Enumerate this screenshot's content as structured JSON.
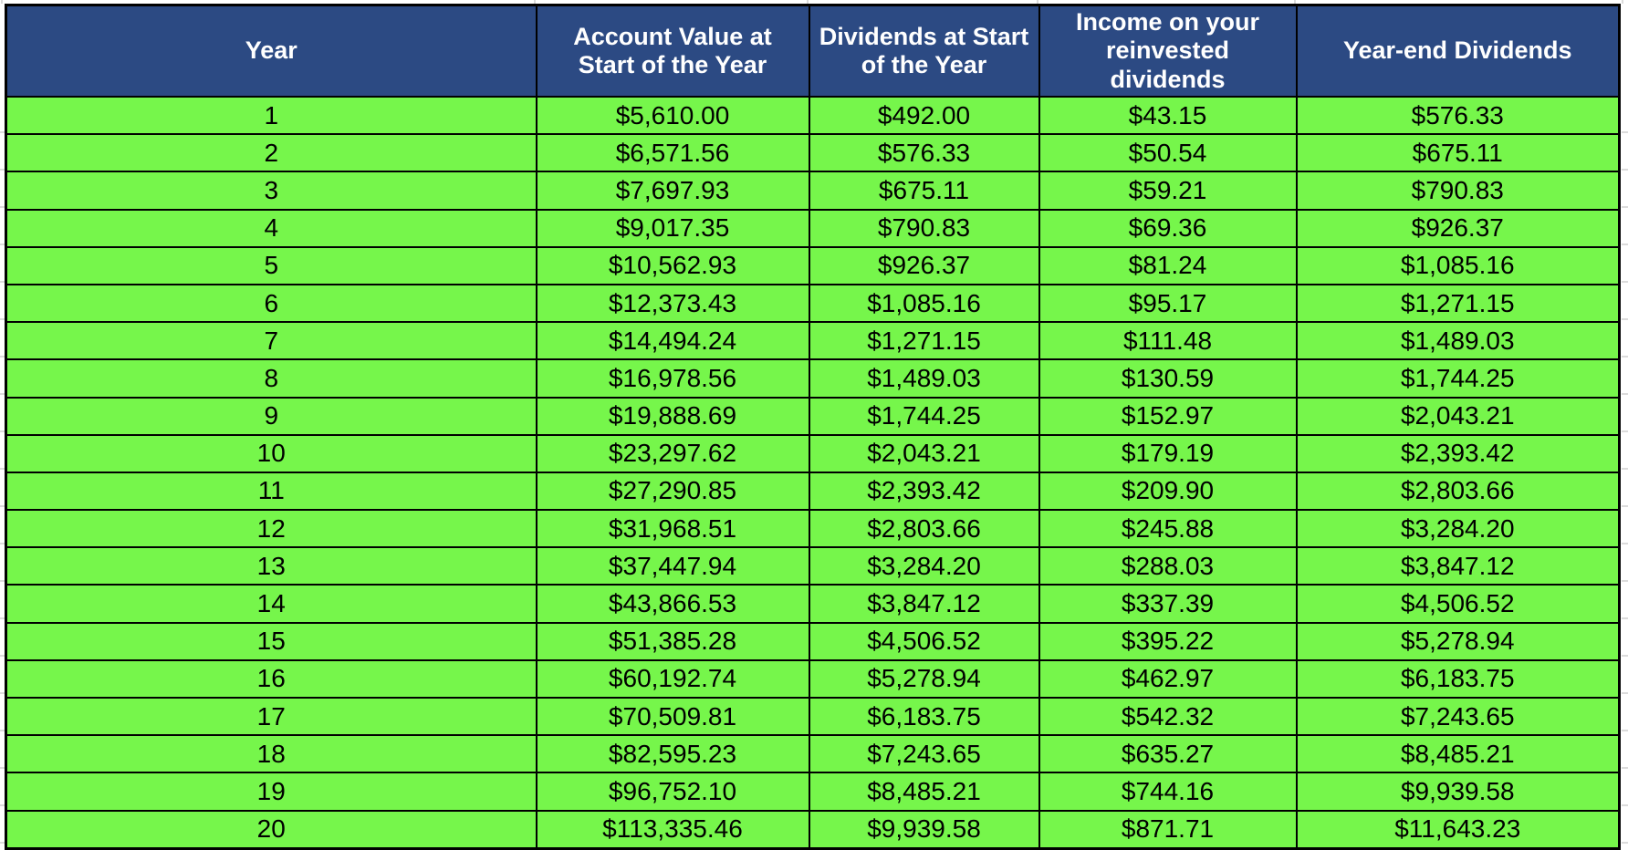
{
  "table": {
    "columns": [
      "Year",
      "Account Value at Start of the Year",
      "Dividends at Start of the Year",
      "Income on your reinvested dividends",
      "Year-end Dividends"
    ],
    "rows": [
      [
        "1",
        "$5,610.00",
        "$492.00",
        "$43.15",
        "$576.33"
      ],
      [
        "2",
        "$6,571.56",
        "$576.33",
        "$50.54",
        "$675.11"
      ],
      [
        "3",
        "$7,697.93",
        "$675.11",
        "$59.21",
        "$790.83"
      ],
      [
        "4",
        "$9,017.35",
        "$790.83",
        "$69.36",
        "$926.37"
      ],
      [
        "5",
        "$10,562.93",
        "$926.37",
        "$81.24",
        "$1,085.16"
      ],
      [
        "6",
        "$12,373.43",
        "$1,085.16",
        "$95.17",
        "$1,271.15"
      ],
      [
        "7",
        "$14,494.24",
        "$1,271.15",
        "$111.48",
        "$1,489.03"
      ],
      [
        "8",
        "$16,978.56",
        "$1,489.03",
        "$130.59",
        "$1,744.25"
      ],
      [
        "9",
        "$19,888.69",
        "$1,744.25",
        "$152.97",
        "$2,043.21"
      ],
      [
        "10",
        "$23,297.62",
        "$2,043.21",
        "$179.19",
        "$2,393.42"
      ],
      [
        "11",
        "$27,290.85",
        "$2,393.42",
        "$209.90",
        "$2,803.66"
      ],
      [
        "12",
        "$31,968.51",
        "$2,803.66",
        "$245.88",
        "$3,284.20"
      ],
      [
        "13",
        "$37,447.94",
        "$3,284.20",
        "$288.03",
        "$3,847.12"
      ],
      [
        "14",
        "$43,866.53",
        "$3,847.12",
        "$337.39",
        "$4,506.52"
      ],
      [
        "15",
        "$51,385.28",
        "$4,506.52",
        "$395.22",
        "$5,278.94"
      ],
      [
        "16",
        "$60,192.74",
        "$5,278.94",
        "$462.97",
        "$6,183.75"
      ],
      [
        "17",
        "$70,509.81",
        "$6,183.75",
        "$542.32",
        "$7,243.65"
      ],
      [
        "18",
        "$82,595.23",
        "$7,243.65",
        "$635.27",
        "$8,485.21"
      ],
      [
        "19",
        "$96,752.10",
        "$8,485.21",
        "$744.16",
        "$9,939.58"
      ],
      [
        "20",
        "$113,335.46",
        "$9,939.58",
        "$871.71",
        "$11,643.23"
      ]
    ]
  },
  "colors": {
    "header_background": "#2C4A83",
    "header_text": "#FFFFFF",
    "row_background": "#76F64B",
    "cell_text": "#000000",
    "table_border": "#000000",
    "gridline": "#DBDBDB"
  }
}
